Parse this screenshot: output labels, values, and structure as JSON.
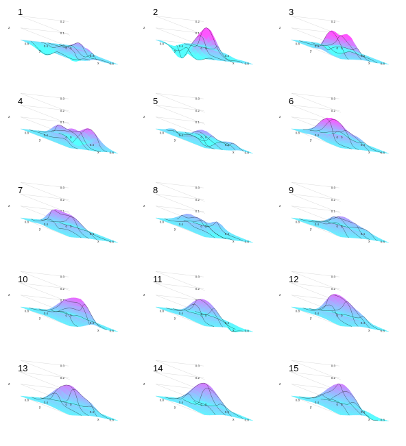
{
  "figure": {
    "panels": [
      {
        "number": "1"
      },
      {
        "number": "2"
      },
      {
        "number": "3"
      },
      {
        "number": "4"
      },
      {
        "number": "5"
      },
      {
        "number": "6"
      },
      {
        "number": "7"
      },
      {
        "number": "8"
      },
      {
        "number": "9"
      },
      {
        "number": "10"
      },
      {
        "number": "11"
      },
      {
        "number": "12"
      },
      {
        "number": "13"
      },
      {
        "number": "14"
      },
      {
        "number": "15"
      }
    ]
  },
  "chart_data": {
    "type": "surface",
    "panel_count": 15,
    "layout": "3 columns x 5 rows",
    "xlabel": "x",
    "ylabel": "y",
    "zlabel": "z",
    "x_ticks": [
      "0",
      "0.2",
      "0.4",
      "0.6",
      "0.8",
      "1"
    ],
    "y_ticks": [
      "0",
      "0.2",
      "0.4",
      "0.6",
      "0.8",
      "1"
    ],
    "z_ticks_early": [
      "0",
      "0.1",
      "0.2"
    ],
    "z_ticks_late": [
      "0",
      "0.1",
      "0.2",
      "0.3"
    ],
    "xlim": [
      0,
      1
    ],
    "ylim": [
      0,
      1
    ],
    "colormap": "cool (cyan to magenta)",
    "contour_lines": true,
    "colors": {
      "low": "#55ffff",
      "high": "#ff55ff",
      "contour": "#1a1a1a"
    }
  }
}
